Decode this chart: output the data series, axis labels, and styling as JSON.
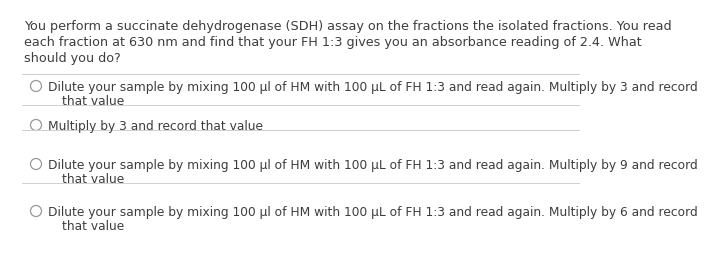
{
  "background_color": "#ffffff",
  "question_line1": "You perform a succinate dehydrogenase (SDH) assay on the fractions the isolated fractions. You read",
  "question_line2": "each fraction at 630 nm and find that your FH 1:3 gives you an absorbance reading of 2.4. What",
  "question_line3": "should you do?",
  "options": [
    [
      "Dilute your sample by mixing 100 µl of HM with 100 µL of FH 1:3 and read again. Multiply by 3 and record",
      "that value"
    ],
    [
      "Multiply by 3 and record that value"
    ],
    [
      "Dilute your sample by mixing 100 µl of HM with 100 µL of FH 1:3 and read again. Multiply by 9 and record",
      "that value"
    ],
    [
      "Dilute your sample by mixing 100 µl of HM with 100 µL of FH 1:3 and read again. Multiply by 6 and record",
      "that value"
    ]
  ],
  "text_color": "#3d3d3d",
  "line_color": "#d0d0d0",
  "font_size_question": 9.2,
  "font_size_options": 8.8,
  "circle_color": "#999999"
}
